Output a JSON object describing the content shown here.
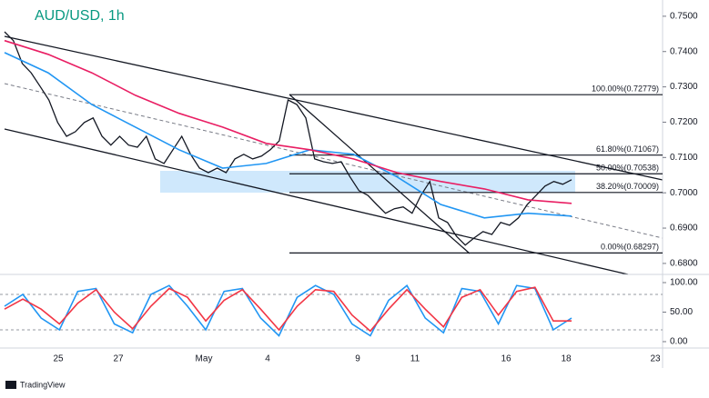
{
  "chart_data": [
    {
      "type": "line",
      "title": "AUD/USD, 1h",
      "ylim": [
        0.6774,
        0.7546
      ],
      "yticks": [
        {
          "value": 0.68,
          "label": "0.6800"
        },
        {
          "value": 0.69,
          "label": "0.6900"
        },
        {
          "value": 0.7,
          "label": "0.7000"
        },
        {
          "value": 0.71,
          "label": "0.7100"
        },
        {
          "value": 0.72,
          "label": "0.7200"
        },
        {
          "value": 0.73,
          "label": "0.7300"
        },
        {
          "value": 0.74,
          "label": "0.7400"
        },
        {
          "value": 0.75,
          "label": "0.7500"
        }
      ],
      "x_labels": [
        "25",
        "27",
        "May",
        "4",
        "9",
        "11",
        "16",
        "18",
        "23"
      ],
      "series": [
        {
          "color": "#131722",
          "values": [
            0.7456,
            0.7431,
            0.7366,
            0.734,
            0.7302,
            0.7263,
            0.7199,
            0.716,
            0.7173,
            0.7199,
            0.7212,
            0.716,
            0.7135,
            0.716,
            0.7135,
            0.7129,
            0.716,
            0.7096,
            0.7083,
            0.7122,
            0.716,
            0.7109,
            0.707,
            0.7057,
            0.707,
            0.7057,
            0.7096,
            0.7109,
            0.7096,
            0.7104,
            0.7122,
            0.7147,
            0.7263,
            0.725,
            0.7212,
            0.7096,
            0.7088,
            0.7083,
            0.7088,
            0.7045,
            0.7006,
            0.6993,
            0.6967,
            0.6942,
            0.6955,
            0.696,
            0.6942,
            0.6993,
            0.7032,
            0.6929,
            0.6916,
            0.6877,
            0.6852,
            0.6872,
            0.689,
            0.6882,
            0.6916,
            0.6908,
            0.6929,
            0.6967,
            0.6993,
            0.7019,
            0.7032,
            0.7024,
            0.7037
          ]
        },
        {
          "color": "#2196f3",
          "values": [
            0.7397,
            0.734,
            0.725,
            0.7186,
            0.7122,
            0.707,
            0.7083,
            0.7122,
            0.7109,
            0.7045,
            0.6967,
            0.6929,
            0.6942,
            0.6934
          ]
        },
        {
          "color": "#e91e63",
          "values": [
            0.7431,
            0.7392,
            0.734,
            0.7276,
            0.7225,
            0.7186,
            0.714,
            0.7122,
            0.7096,
            0.7057,
            0.7032,
            0.7011,
            0.698,
            0.697
          ]
        }
      ],
      "fib": {
        "levels": [
          0.72779,
          0.71067,
          0.70538,
          0.70009,
          0.68297
        ],
        "value_labels": [
          "100.00%(0.72779)",
          "61.80%(0.71067)",
          "50.00%(0.70538)",
          "38.20%(0.70009)",
          "0.00%(0.68297)"
        ]
      }
    },
    {
      "type": "line",
      "ylim": [
        -10.8,
        112.3
      ],
      "yticks": [
        {
          "value": 0,
          "label": "0.00"
        },
        {
          "value": 50,
          "label": "50.00"
        },
        {
          "value": 100,
          "label": "100.00"
        }
      ],
      "bands": [
        80,
        20
      ],
      "series": [
        {
          "color": "#2196f3",
          "values": [
            60,
            80,
            40,
            20,
            85,
            90,
            30,
            15,
            80,
            95,
            60,
            20,
            85,
            90,
            40,
            10,
            75,
            95,
            80,
            30,
            10,
            70,
            95,
            40,
            15,
            90,
            85,
            30,
            95,
            90,
            20,
            40
          ]
        },
        {
          "color": "#f23645",
          "values": [
            55,
            72,
            55,
            30,
            65,
            88,
            50,
            22,
            60,
            90,
            75,
            35,
            70,
            88,
            55,
            20,
            60,
            88,
            85,
            45,
            18,
            55,
            88,
            55,
            25,
            75,
            88,
            45,
            85,
            92,
            35,
            35
          ]
        }
      ]
    }
  ],
  "logo": "TradingView"
}
